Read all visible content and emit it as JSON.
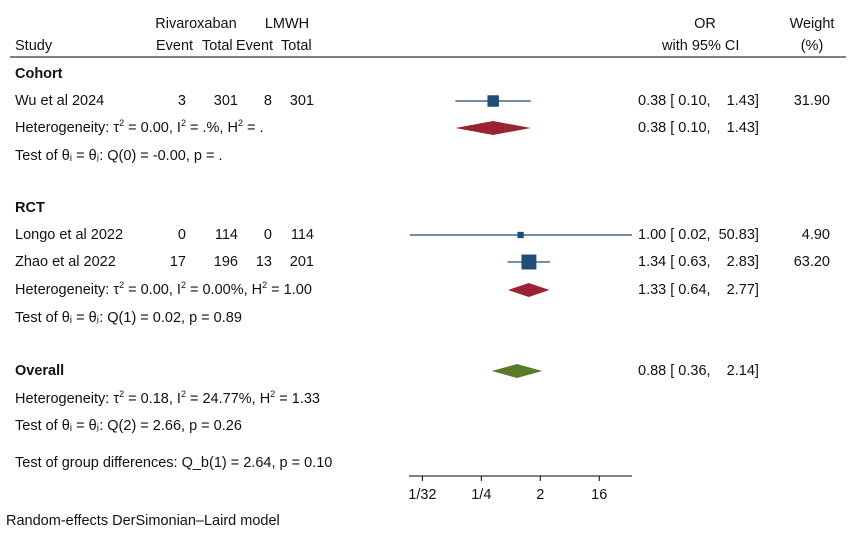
{
  "header": {
    "study": "Study",
    "group1": "Rivaroxaban",
    "group2": "LMWH",
    "event1": "Event",
    "total1": "Total",
    "event2": "Event",
    "total2": "Total",
    "effect_line1": "OR",
    "effect_line2": "with 95% CI",
    "weight_line1": "Weight",
    "weight_line2": "(%)"
  },
  "groups": [
    {
      "name": "Cohort",
      "studies": [
        {
          "name": "Wu et al 2024",
          "e1": "3",
          "t1": "301",
          "e2": "8",
          "t2": "301",
          "ci_text": "0.38 [ 0.10,    1.43]",
          "weight": "31.90"
        }
      ],
      "het": {
        "prefix": "Heterogeneity: τ",
        "mid1": " = 0.00, I",
        "mid2": " = .%, H",
        "tail": " = .",
        "sup": "2"
      },
      "test": "Test of θᵢ = θⱼ: Q(0) = -0.00, p = .",
      "pooled_ci_text": "0.38 [ 0.10,    1.43]"
    },
    {
      "name": "RCT",
      "studies": [
        {
          "name": "Longo et al 2022",
          "e1": "0",
          "t1": "114",
          "e2": "0",
          "t2": "114",
          "ci_text": "1.00 [ 0.02,  50.83]",
          "weight": "4.90"
        },
        {
          "name": "Zhao et al 2022",
          "e1": "17",
          "t1": "196",
          "e2": "13",
          "t2": "201",
          "ci_text": "1.34 [ 0.63,    2.83]",
          "weight": "63.20"
        }
      ],
      "het": {
        "prefix": "Heterogeneity: τ",
        "mid1": " = 0.00, I",
        "mid2": " = 0.00%, H",
        "tail": " = 1.00",
        "sup": "2"
      },
      "test": "Test of θᵢ = θⱼ: Q(1) = 0.02, p = 0.89",
      "pooled_ci_text": "1.33 [ 0.64,    2.77]"
    }
  ],
  "overall": {
    "label": "Overall",
    "ci_text": "0.88 [ 0.36,    2.14]",
    "het": {
      "prefix": "Heterogeneity: τ",
      "mid1": " = 0.18, I",
      "mid2": " = 24.77%, H",
      "tail": " = 1.33",
      "sup": "2"
    },
    "test": "Test of θᵢ = θⱼ: Q(2) = 2.66, p = 0.26",
    "group_diff": "Test of group differences: Q_b(1) = 2.64, p = 0.10"
  },
  "footnote": "Random-effects DerSimonian–Laird model",
  "chart_data": {
    "type": "forest",
    "scale": "log2",
    "xlim": [
      0.0195,
      50.83
    ],
    "xticks": [
      0.03125,
      0.25,
      2,
      16
    ],
    "xtick_labels": [
      "1/32",
      "1/4",
      "2",
      "16"
    ],
    "studies": [
      {
        "name": "Wu et al 2024",
        "group": "Cohort",
        "or": 0.38,
        "lo": 0.1,
        "hi": 1.43,
        "weight": 31.9
      },
      {
        "name": "Longo et al 2022",
        "group": "RCT",
        "or": 1.0,
        "lo": 0.02,
        "hi": 50.83,
        "weight": 4.9
      },
      {
        "name": "Zhao et al 2022",
        "group": "RCT",
        "or": 1.34,
        "lo": 0.63,
        "hi": 2.83,
        "weight": 63.2
      }
    ],
    "pooled": [
      {
        "name": "Cohort",
        "or": 0.38,
        "lo": 0.1,
        "hi": 1.43
      },
      {
        "name": "RCT",
        "or": 1.33,
        "lo": 0.64,
        "hi": 2.77
      },
      {
        "name": "Overall",
        "or": 0.88,
        "lo": 0.36,
        "hi": 2.14
      }
    ],
    "colors": {
      "study": "#1f4e79",
      "subgroup": "#9b2335",
      "overall": "#5a7a2c"
    }
  }
}
